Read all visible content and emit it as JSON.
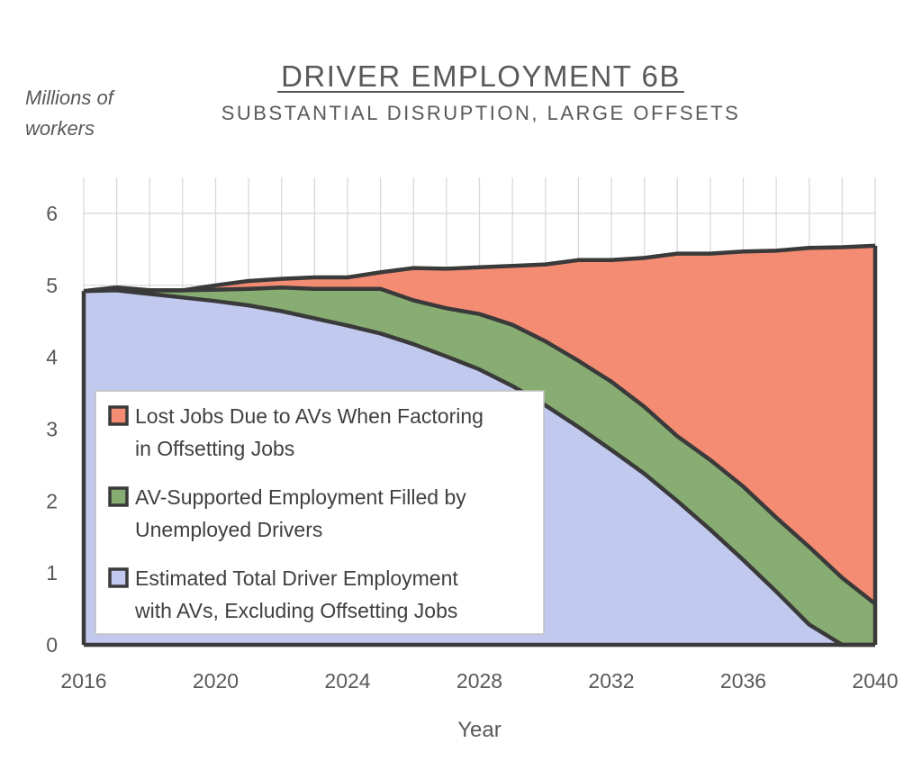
{
  "chart_data": {
    "type": "area",
    "title": "DRIVER EMPLOYMENT 6B",
    "subtitle": "SUBSTANTIAL DISRUPTION, LARGE OFFSETS",
    "ylabel": "Millions of workers",
    "ylabel_lines": [
      "Millions of",
      "workers"
    ],
    "xlabel": "Year",
    "xlim": [
      2016,
      2040
    ],
    "ylim": [
      0,
      6.5
    ],
    "x_ticks": [
      2016,
      2020,
      2024,
      2028,
      2032,
      2036,
      2040
    ],
    "y_ticks": [
      0,
      1,
      2,
      3,
      4,
      5,
      6
    ],
    "grid": true,
    "stacked": true,
    "legend_position": "lower-left",
    "x": [
      2016,
      2017,
      2018,
      2019,
      2020,
      2021,
      2022,
      2023,
      2024,
      2025,
      2026,
      2027,
      2028,
      2029,
      2030,
      2031,
      2032,
      2033,
      2034,
      2035,
      2036,
      2037,
      2038,
      2039,
      2040
    ],
    "series": [
      {
        "name": "Estimated Total Driver Employment with AVs, Excluding Offsetting Jobs",
        "legend_lines": [
          "Estimated Total Driver Employment",
          "with AVs, Excluding Offsetting Jobs"
        ],
        "color": "#c1c9ee",
        "values": [
          4.92,
          4.93,
          4.88,
          4.83,
          4.78,
          4.72,
          4.64,
          4.54,
          4.44,
          4.33,
          4.18,
          4.01,
          3.83,
          3.6,
          3.33,
          3.03,
          2.71,
          2.38,
          2.0,
          1.6,
          1.18,
          0.74,
          0.28,
          0.0,
          0.0
        ]
      },
      {
        "name": "AV-Supported Employment Filled by Unemployed Drivers",
        "legend_lines": [
          "AV-Supported Employment Filled by",
          "Unemployed Drivers"
        ],
        "color": "#88ad72",
        "values": [
          0.0,
          0.04,
          0.05,
          0.1,
          0.16,
          0.23,
          0.33,
          0.41,
          0.51,
          0.62,
          0.61,
          0.67,
          0.77,
          0.85,
          0.89,
          0.92,
          0.95,
          0.93,
          0.9,
          0.97,
          1.02,
          1.03,
          1.08,
          0.93,
          0.57
        ]
      },
      {
        "name": "Lost Jobs Due to AVs When Factoring in Offsetting Jobs",
        "legend_lines": [
          "Lost Jobs Due to AVs When Factoring",
          "in Offsetting Jobs"
        ],
        "color": "#f38c73",
        "values": [
          0.0,
          0.0,
          0.0,
          0.0,
          0.06,
          0.11,
          0.12,
          0.16,
          0.16,
          0.23,
          0.45,
          0.55,
          0.65,
          0.82,
          1.07,
          1.4,
          1.69,
          2.07,
          2.54,
          2.87,
          3.27,
          3.71,
          4.16,
          4.6,
          4.98
        ]
      }
    ]
  },
  "colors": {
    "outline": "#3a3a3a",
    "grid": "#d9d9d9",
    "text": "#595959"
  }
}
